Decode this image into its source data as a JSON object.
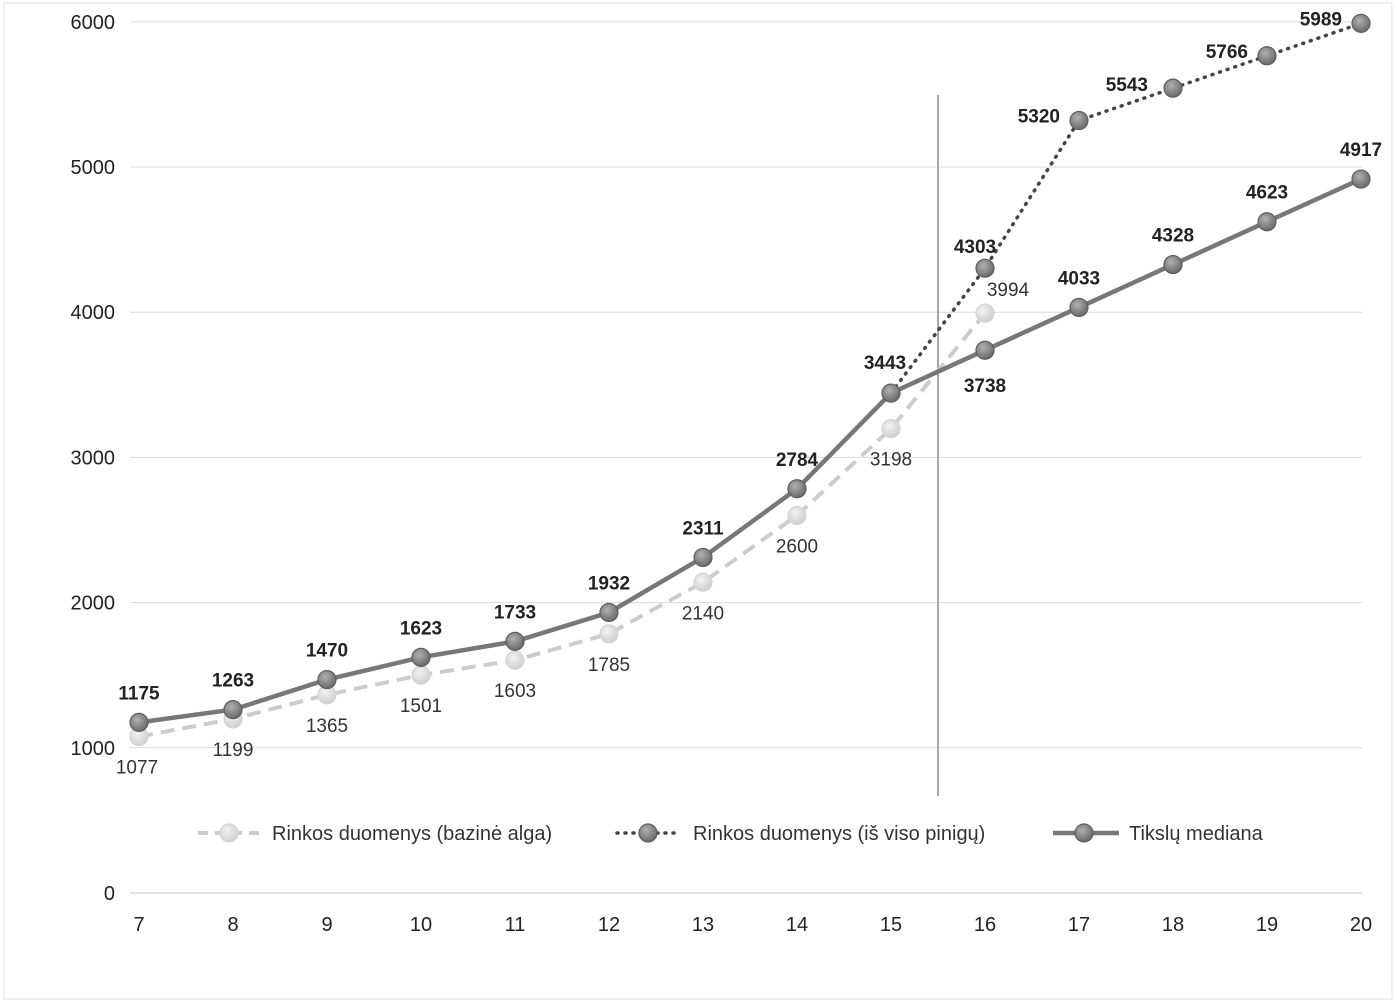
{
  "chart_data": {
    "type": "line",
    "x": [
      7,
      8,
      9,
      10,
      11,
      12,
      13,
      14,
      15,
      16,
      17,
      18,
      19,
      20
    ],
    "ylim": [
      0,
      6000
    ],
    "yticks": [
      0,
      1000,
      2000,
      3000,
      4000,
      5000,
      6000
    ],
    "grid": true,
    "legend_position": "bottom (inside plot)",
    "vertical_marker_x": 15.5,
    "series": [
      {
        "name": "Rinkos duomenys (bazinė alga)",
        "style": "dashed",
        "color": "#cccccc",
        "label_weight": "normal",
        "x": [
          7,
          8,
          9,
          10,
          11,
          12,
          13,
          14,
          15,
          16
        ],
        "values": [
          1077,
          1199,
          1365,
          1501,
          1603,
          1785,
          2140,
          2600,
          3198,
          3994
        ]
      },
      {
        "name": "Rinkos duomenys (iš viso pinigų)",
        "style": "dotted",
        "color": "#444444",
        "label_weight": "bold",
        "x": [
          15,
          16,
          17,
          18,
          19,
          20
        ],
        "values": [
          3443,
          4303,
          5320,
          5543,
          5766,
          5989
        ]
      },
      {
        "name": "Tikslų mediana",
        "style": "solid",
        "color": "#777777",
        "label_weight": "mixed",
        "x": [
          7,
          8,
          9,
          10,
          11,
          12,
          13,
          14,
          15,
          16,
          17,
          18,
          19,
          20
        ],
        "values": [
          1175,
          1263,
          1470,
          1623,
          1733,
          1932,
          2311,
          2784,
          3443,
          3738,
          4033,
          4328,
          4623,
          4917
        ]
      }
    ]
  }
}
